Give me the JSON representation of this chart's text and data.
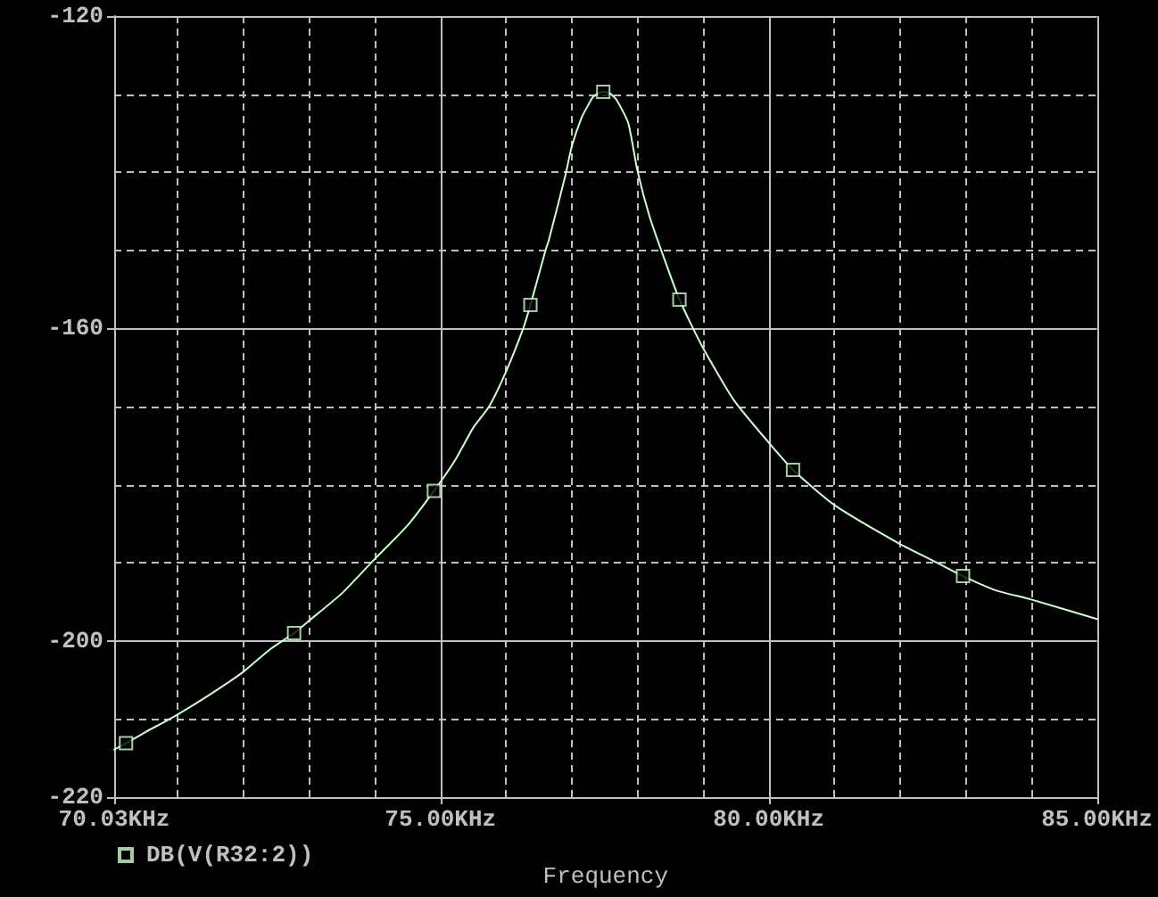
{
  "chart_data": {
    "type": "line",
    "xlabel": "Frequency",
    "xlim": [
      70.03,
      85.0
    ],
    "xticks": [
      {
        "value": 70.03,
        "label": "70.03KHz"
      },
      {
        "value": 71,
        "label": null
      },
      {
        "value": 72,
        "label": null
      },
      {
        "value": 73,
        "label": null
      },
      {
        "value": 74,
        "label": null
      },
      {
        "value": 75,
        "label": "75.00KHz"
      },
      {
        "value": 76,
        "label": null
      },
      {
        "value": 77,
        "label": null
      },
      {
        "value": 78,
        "label": null
      },
      {
        "value": 79,
        "label": null
      },
      {
        "value": 80,
        "label": "80.00KHz"
      },
      {
        "value": 81,
        "label": null
      },
      {
        "value": 82,
        "label": null
      },
      {
        "value": 83,
        "label": null
      },
      {
        "value": 84,
        "label": null
      },
      {
        "value": 85,
        "label": "85.00KHz"
      }
    ],
    "ylim": [
      -220,
      -120
    ],
    "yticks": [
      -220,
      {
        "value": -210,
        "label": null
      },
      -200,
      {
        "value": -190,
        "label": null
      },
      {
        "value": -180,
        "label": null
      },
      {
        "value": -170,
        "label": null
      },
      -160,
      {
        "value": -150,
        "label": null
      },
      {
        "value": -140,
        "label": null
      },
      {
        "value": -130,
        "label": null
      },
      -120
    ],
    "grid": true,
    "legend": "bottom left",
    "line_style": "solid",
    "series": [
      {
        "color": "#ccffcc",
        "marker": "none",
        "x": [
          70.03,
          70.21,
          70.5,
          70.96,
          71.5,
          71.99,
          72.4,
          72.77,
          73.0,
          73.5,
          74.0,
          74.5,
          74.9,
          75.22,
          75.5,
          75.74,
          76.0,
          76.26,
          76.37,
          76.6,
          76.65,
          76.9,
          77.0,
          77.15,
          77.25,
          77.33,
          77.48,
          77.58,
          77.68,
          77.86,
          78.0,
          78.19,
          78.41,
          78.64,
          79.0,
          79.48,
          80.0,
          80.37,
          81.0,
          81.98,
          82.59,
          82.96,
          83.45,
          84.0,
          85.0
        ],
        "values": [
          -213.9,
          -213.1,
          -211.7,
          -209.6,
          -206.8,
          -204.0,
          -201.1,
          -199.0,
          -197.4,
          -193.9,
          -189.5,
          -185.2,
          -180.8,
          -176.9,
          -172.7,
          -170.0,
          -165.5,
          -160.0,
          -157.0,
          -150.0,
          -148.7,
          -140.5,
          -136.7,
          -133.0,
          -131.4,
          -130.3,
          -129.7,
          -129.9,
          -130.7,
          -133.7,
          -139.8,
          -145.8,
          -151.1,
          -156.3,
          -162.5,
          -169.3,
          -174.6,
          -178.1,
          -182.6,
          -187.5,
          -190.1,
          -191.7,
          -193.5,
          -194.7,
          -197.2
        ]
      },
      {
        "type": "scatter",
        "name": "DB(V(R32:2))",
        "color": "#ccffcc",
        "marker": "square",
        "x": [
          70.21,
          72.77,
          74.9,
          76.37,
          77.48,
          78.64,
          80.37,
          82.96
        ],
        "values": [
          -213.1,
          -199.0,
          -180.8,
          -157.0,
          -129.7,
          -156.3,
          -178.1,
          -191.7
        ]
      }
    ]
  }
}
